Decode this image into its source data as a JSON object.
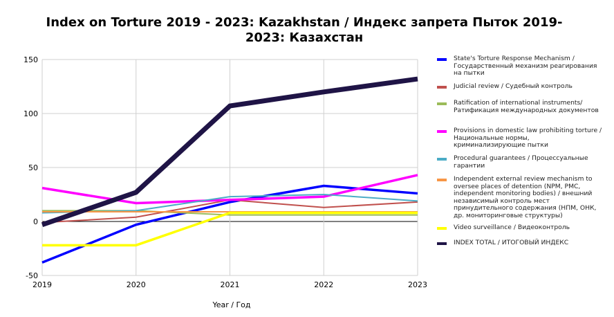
{
  "chart_data": {
    "type": "line",
    "title": "Index on Torture 2019 - 2023: Kazakhstan / Индекс запрета Пыток 2019-2023: Казахстан",
    "xlabel": "Year / Год",
    "ylabel": "",
    "x": [
      "2019",
      "2020",
      "2021",
      "2022",
      "2023"
    ],
    "ylim": [
      -50,
      150
    ],
    "yticks": [
      -50,
      0,
      50,
      100,
      150
    ],
    "grid": true,
    "legend_position": "right",
    "series": [
      {
        "name": "State's Torture Response Mechanism / Государственный механизм реагирования на пытки",
        "color": "#0000ff",
        "values": [
          -38,
          -3,
          18,
          33,
          26
        ]
      },
      {
        "name": "Judicial review / Судебный контроль",
        "color": "#c0504d",
        "values": [
          -1,
          4,
          20,
          13,
          18
        ]
      },
      {
        "name": "Ratification of international instruments/ Ратификация международных документов",
        "color": "#9bbb59",
        "values": [
          10,
          10,
          6,
          6,
          6
        ]
      },
      {
        "name": "Provisions in domestic law prohibiting torture / Национальные нормы, криминализирующие пытки",
        "color": "#ff00ff",
        "values": [
          31,
          17,
          20,
          23,
          43
        ]
      },
      {
        "name": "Procedural guarantees / Процессуальные гарантии",
        "color": "#4bacc6",
        "values": [
          8,
          10,
          23,
          25,
          19
        ]
      },
      {
        "name": "Independent external review mechanism to oversee places of detention (NPM, PMC, independent monitoring bodies) / внешний независимый контроль мест принудительного содержания (НПМ, ОНК, др. мониторинговые структуры)",
        "color": "#f79646",
        "values": [
          9,
          9,
          9,
          9,
          9
        ]
      },
      {
        "name": "Video surveillance / Видеоконтроль",
        "color": "#ffff00",
        "values": [
          -22,
          -22,
          8,
          8,
          8
        ]
      },
      {
        "name": "INDEX TOTAL /  ИТОГОВЫЙ ИНДЕКС",
        "color": "#1f1446",
        "values": [
          -3,
          27,
          107,
          120,
          132
        ]
      }
    ]
  }
}
